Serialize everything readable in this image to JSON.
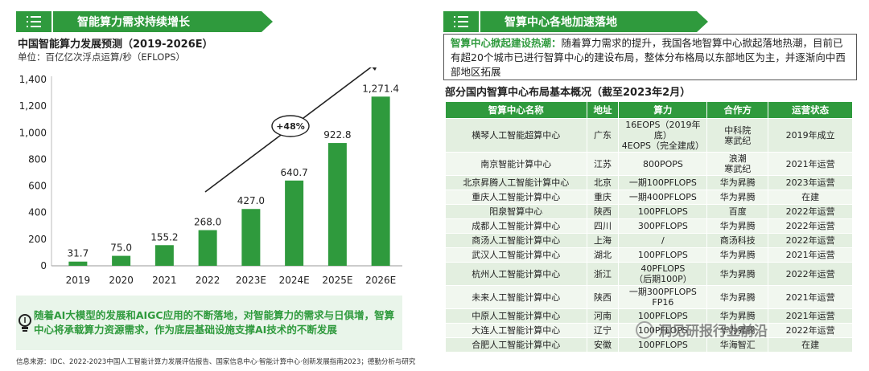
{
  "left_banner": "智能算力需求持续增长",
  "right_banner": "智算中心各地加速落地",
  "chart_data": {
    "type": "bar",
    "title": "中国智能算力发展预测（2019-2026E）",
    "unit": "单位：百亿亿次浮点运算/秒（EFLOPS）",
    "categories": [
      "2019",
      "2020",
      "2021",
      "2022",
      "2023E",
      "2024E",
      "2025E",
      "2026E"
    ],
    "values": [
      31.7,
      75.0,
      155.2,
      268.0,
      427.0,
      640.7,
      922.8,
      1271.4
    ],
    "value_labels": [
      "31.7",
      "75.0",
      "155.2",
      "268.0",
      "427.0",
      "640.7",
      "922.8",
      "1,271.4"
    ],
    "yticks": [
      "0",
      "200",
      "400",
      "600",
      "800",
      "1,000",
      "1,200",
      "1,400"
    ],
    "ylim": [
      0,
      1400
    ],
    "growth_label": "+48%",
    "color": "#2f9a3d"
  },
  "note": "随着AI大模型的发展和AIGC应用的不断落地，对智能算力的需求与日俱增，智算中心将承载算力资源需求，作为底层基础设施支撑AI技术的不断发展",
  "source": "信息来源：IDC、2022-2023中国人工智能计算力发展评估报告、国家信息中心·智能计算中心·创新发展指南2023；德勤分析与研究",
  "hot": {
    "keyword": "智算中心掀起建设热潮：",
    "text": "随着算力需求的提升，我国各地智算中心掀起落地热潮，目前已有超20个城市已进行智算中心的建设布局，整体分布格局以东部地区为主，并逐渐向中西部地区拓展"
  },
  "table": {
    "title": "部分国内智算中心布局基本概况（截至2023年2月）",
    "headers": [
      "智算中心名称",
      "地址",
      "算力",
      "合作方",
      "运营状态"
    ],
    "rows": [
      [
        "横琴人工智能超算中心",
        "广东",
        "16EOPS（2019年底）\n4EOPS（完全建成）",
        "中科院\n寒武纪",
        "2019年成立"
      ],
      [
        "南京智能计算中心",
        "江苏",
        "800POPS",
        "浪潮\n寒武纪",
        "2021年运营"
      ],
      [
        "北京昇腾人工智能计算中心",
        "北京",
        "一期100PFLOPS",
        "华为昇腾",
        "2023年运营"
      ],
      [
        "重庆人工智能计算中心",
        "重庆",
        "一期400PFLOPS",
        "华为昇腾",
        "在建"
      ],
      [
        "阳泉智算中心",
        "陕西",
        "100PFLOPS",
        "百度",
        "2022年运营"
      ],
      [
        "成都人工智能计算中心",
        "四川",
        "300PFLOPS",
        "华为昇腾",
        "2022年运营"
      ],
      [
        "商汤人工智能计算中心",
        "上海",
        "/",
        "商汤科技",
        "2022年运营"
      ],
      [
        "武汉人工智能计算中心",
        "湖北",
        "100PFLOPS",
        "华为昇腾",
        "2021年运营"
      ],
      [
        "杭州人工智能计算中心",
        "浙江",
        "40PFLOPS\n（后期100P）",
        "华为昇腾",
        "2022年运营"
      ],
      [
        "未来人工智能计算中心",
        "陕西",
        "一期300PFLOPS FP16",
        "华为昇腾",
        "2021年运营"
      ],
      [
        "中原人工智能计算中心",
        "河南",
        "100PFLOPS",
        "华为昇腾",
        "2021年运营"
      ],
      [
        "大连人工智能计算中心",
        "辽宁",
        "100PFLOPS",
        "华为昇腾",
        "2022年运营"
      ],
      [
        "合肥人工智能计算中心",
        "安徽",
        "100PFLOPS",
        "华海智汇",
        "在建"
      ]
    ]
  },
  "watermark": "洞见研报行业前沿"
}
